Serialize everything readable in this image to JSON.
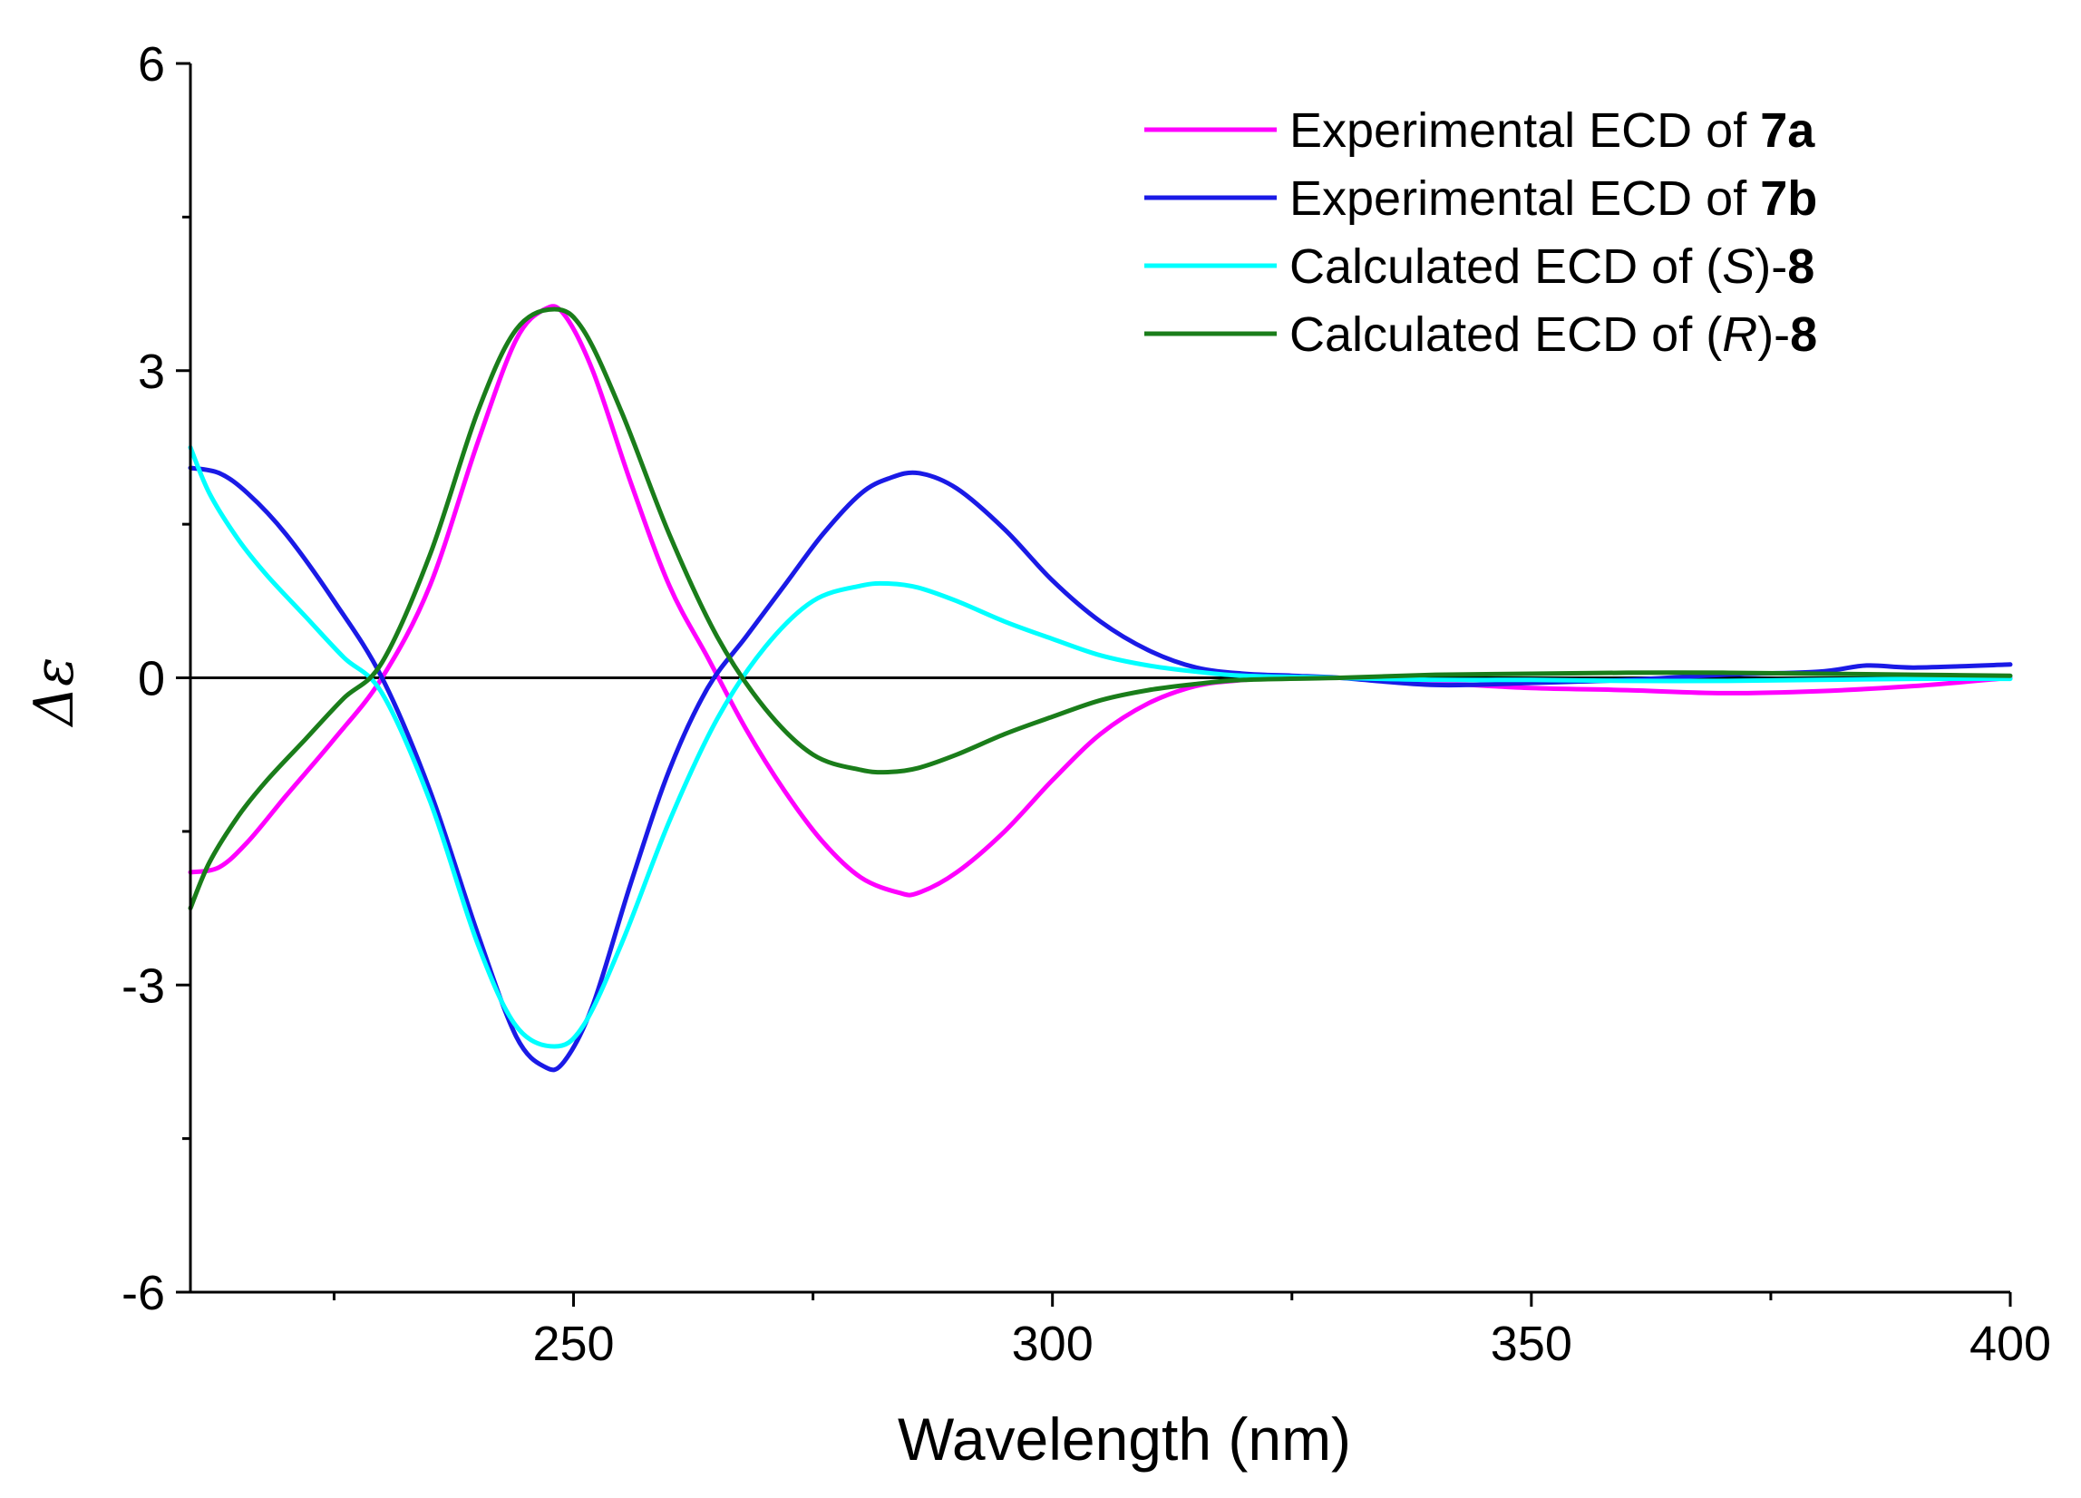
{
  "chart_data": {
    "type": "line",
    "xlabel": "Wavelength (nm)",
    "ylabel": "Δε",
    "xlim": [
      210,
      400
    ],
    "ylim": [
      -6,
      6
    ],
    "xticks": [
      250,
      300,
      350,
      400
    ],
    "yticks": [
      -6,
      -3,
      0,
      3,
      6
    ],
    "xtick_labels": [
      "250",
      "300",
      "350",
      "400"
    ],
    "ytick_labels": [
      "-6",
      "-3",
      "0",
      "3",
      "6"
    ],
    "grid": false,
    "zero_line": true,
    "legend_position": "top-right",
    "series": [
      {
        "name": "Experimental ECD of 7a",
        "legend_parts": [
          {
            "text": "Experimental ECD of ",
            "style": "normal"
          },
          {
            "text": "7a",
            "style": "bold"
          }
        ],
        "color": "#ff00ff",
        "x": [
          210,
          213,
          216,
          220,
          225,
          230,
          235,
          240,
          244,
          247,
          249,
          252,
          256,
          260,
          264,
          268,
          272,
          276,
          280,
          284,
          286,
          290,
          295,
          300,
          305,
          310,
          315,
          320,
          325,
          330,
          340,
          350,
          360,
          370,
          380,
          390,
          400
        ],
        "y": [
          -1.9,
          -1.85,
          -1.6,
          -1.15,
          -0.6,
          0.0,
          0.9,
          2.3,
          3.3,
          3.6,
          3.55,
          3.0,
          1.9,
          0.9,
          0.2,
          -0.5,
          -1.1,
          -1.6,
          -1.95,
          -2.1,
          -2.1,
          -1.9,
          -1.5,
          -1.0,
          -0.55,
          -0.25,
          -0.08,
          -0.02,
          0.0,
          0.0,
          -0.05,
          -0.1,
          -0.12,
          -0.15,
          -0.13,
          -0.08,
          0.0
        ]
      },
      {
        "name": "Experimental ECD of 7b",
        "legend_parts": [
          {
            "text": "Experimental ECD of ",
            "style": "normal"
          },
          {
            "text": "7b",
            "style": "bold"
          }
        ],
        "color": "#1a1ae6",
        "x": [
          210,
          213,
          216,
          220,
          225,
          230,
          235,
          240,
          244,
          247,
          249,
          252,
          256,
          260,
          264,
          268,
          272,
          276,
          280,
          283,
          286,
          290,
          295,
          300,
          305,
          310,
          315,
          320,
          325,
          330,
          340,
          350,
          360,
          370,
          380,
          385,
          390,
          400
        ],
        "y": [
          2.05,
          2.0,
          1.8,
          1.4,
          0.75,
          0.0,
          -1.1,
          -2.5,
          -3.5,
          -3.8,
          -3.75,
          -3.2,
          -2.0,
          -0.9,
          -0.1,
          0.4,
          0.9,
          1.4,
          1.8,
          1.95,
          2.0,
          1.85,
          1.45,
          0.95,
          0.55,
          0.27,
          0.1,
          0.04,
          0.02,
          0.0,
          -0.07,
          -0.05,
          -0.02,
          0.03,
          0.06,
          0.12,
          0.1,
          0.13
        ]
      },
      {
        "name": "Calculated ECD of (S)-8",
        "legend_parts": [
          {
            "text": "Calculated ECD of (",
            "style": "normal"
          },
          {
            "text": "S",
            "style": "italic"
          },
          {
            "text": ")-",
            "style": "normal"
          },
          {
            "text": "8",
            "style": "bold"
          }
        ],
        "color": "#00ffff",
        "x": [
          210,
          212,
          215,
          218,
          222,
          226,
          230,
          235,
          240,
          244,
          248,
          251,
          255,
          260,
          265,
          270,
          275,
          280,
          283,
          286,
          290,
          295,
          300,
          305,
          310,
          315,
          320,
          330,
          340,
          350,
          360,
          370,
          380,
          390,
          400
        ],
        "y": [
          2.25,
          1.8,
          1.35,
          1.0,
          0.6,
          0.2,
          -0.15,
          -1.2,
          -2.6,
          -3.4,
          -3.6,
          -3.4,
          -2.6,
          -1.4,
          -0.4,
          0.3,
          0.75,
          0.9,
          0.92,
          0.88,
          0.75,
          0.55,
          0.38,
          0.22,
          0.12,
          0.06,
          0.02,
          0.0,
          -0.02,
          -0.02,
          -0.03,
          -0.03,
          -0.02,
          -0.01,
          -0.01
        ]
      },
      {
        "name": "Calculated ECD of (R)-8",
        "legend_parts": [
          {
            "text": "Calculated ECD of (",
            "style": "normal"
          },
          {
            "text": "R",
            "style": "italic"
          },
          {
            "text": ")-",
            "style": "normal"
          },
          {
            "text": "8",
            "style": "bold"
          }
        ],
        "color": "#1a7d1a",
        "x": [
          210,
          212,
          215,
          218,
          222,
          226,
          230,
          235,
          240,
          244,
          248,
          251,
          255,
          260,
          265,
          270,
          275,
          280,
          283,
          286,
          290,
          295,
          300,
          305,
          310,
          315,
          320,
          330,
          340,
          350,
          360,
          370,
          380,
          390,
          400
        ],
        "y": [
          -2.25,
          -1.8,
          -1.35,
          -1.0,
          -0.6,
          -0.2,
          0.15,
          1.2,
          2.6,
          3.4,
          3.6,
          3.4,
          2.6,
          1.4,
          0.4,
          -0.3,
          -0.75,
          -0.9,
          -0.92,
          -0.88,
          -0.75,
          -0.55,
          -0.38,
          -0.22,
          -0.12,
          -0.06,
          -0.02,
          0.0,
          0.03,
          0.04,
          0.05,
          0.05,
          0.04,
          0.03,
          0.02
        ]
      }
    ]
  }
}
